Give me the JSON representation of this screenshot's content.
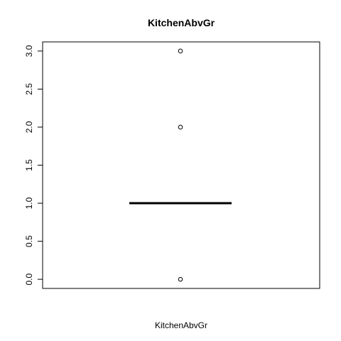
{
  "chart_data": {
    "type": "boxplot",
    "title": "KitchenAbvGr",
    "xlabel": "KitchenAbvGr",
    "ylabel": "",
    "ylim": [
      -0.12,
      3.12
    ],
    "yticks": [
      "0.0",
      "0.5",
      "1.0",
      "1.5",
      "2.0",
      "2.5",
      "3.0"
    ],
    "ytick_values": [
      0,
      0.5,
      1,
      1.5,
      2,
      2.5,
      3
    ],
    "grid": false,
    "box": {
      "min": 1,
      "q1": 1,
      "median": 1,
      "q3": 1,
      "max": 1
    },
    "outliers": [
      0,
      2,
      3
    ]
  }
}
